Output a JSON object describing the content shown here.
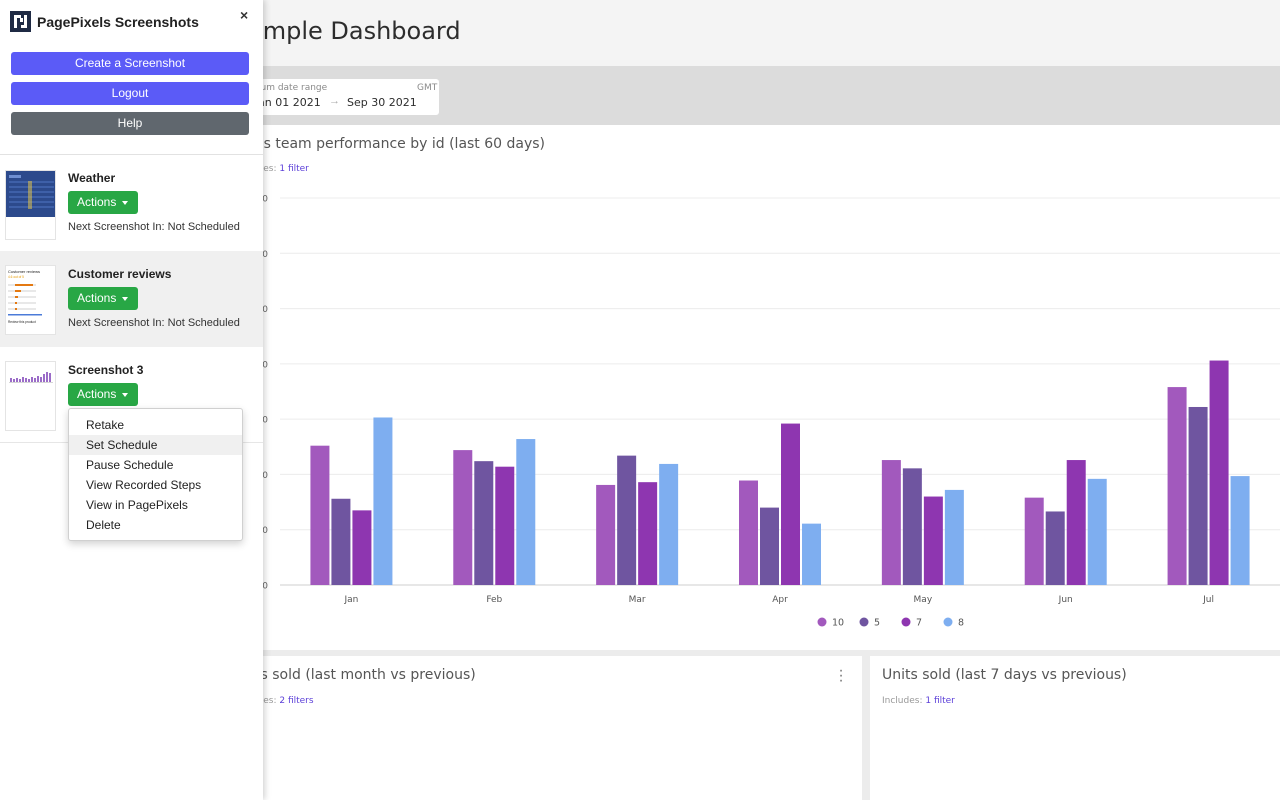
{
  "dashboard": {
    "title": "ample Dashboard",
    "date_range": {
      "label": "ium date range",
      "timezone": "GMT",
      "start": "an 01 2021",
      "end": "Sep 30 2021",
      "arrow": "→"
    },
    "main_card": {
      "title": "es team performance by id (last 60 days)",
      "includes_prefix": "ides:",
      "includes_link": "1 filter"
    },
    "bottom_left_card": {
      "title": "ts sold (last month vs previous)",
      "includes_prefix": "ides:",
      "includes_link": "2 filters"
    },
    "bottom_right_card": {
      "title": "Units sold (last 7 days vs previous)",
      "includes_prefix": "Includes:",
      "includes_link": "1 filter"
    },
    "kebab_icon": "vertical-ellipsis-icon"
  },
  "chart_data": {
    "type": "bar",
    "title": "es team performance by id (last 60 days)",
    "categories": [
      "Jan",
      "Feb",
      "Mar",
      "Apr",
      "May",
      "Jun",
      "Jul"
    ],
    "y_tick_labels": [
      "0",
      "0",
      "0",
      "0",
      "0",
      "0",
      "0",
      "0"
    ],
    "ylim": [
      0,
      7
    ],
    "grid": true,
    "legend_position": "bottom",
    "series": [
      {
        "name": "10",
        "color": "#a259bd",
        "values": [
          2.52,
          2.44,
          1.81,
          1.89,
          2.26,
          1.58,
          3.58
        ]
      },
      {
        "name": "5",
        "color": "#6f55a0",
        "values": [
          1.56,
          2.24,
          2.34,
          1.4,
          2.11,
          1.33,
          3.22
        ]
      },
      {
        "name": "7",
        "color": "#8e36b0",
        "values": [
          1.35,
          2.14,
          1.86,
          2.92,
          1.6,
          2.26,
          4.06
        ]
      },
      {
        "name": "8",
        "color": "#7eaef0",
        "values": [
          3.03,
          2.64,
          2.19,
          1.11,
          1.72,
          1.92,
          1.97
        ]
      }
    ]
  },
  "popup": {
    "title": "PagePixels Screenshots",
    "logo_icon": "pagepixels-logo-icon",
    "close_label": "×",
    "buttons": {
      "create": "Create a Screenshot",
      "logout": "Logout",
      "help": "Help"
    },
    "colors": {
      "primary": "#5b5bf7",
      "secondary": "#60676e",
      "actions": "#28a745"
    },
    "screenshots": [
      {
        "name": "Weather",
        "actions_label": "Actions",
        "next": "Next Screenshot In: Not Scheduled"
      },
      {
        "name": "Customer reviews",
        "actions_label": "Actions",
        "next": "Next Screenshot In: Not Scheduled"
      },
      {
        "name": "Screenshot 3",
        "actions_label": "Actions"
      }
    ],
    "thumb_text": {
      "reviews_title": "Customer reviews",
      "reviews_rating": "4.6 out of 5",
      "reviews_footer": "Review this product"
    },
    "menu": [
      "Retake",
      "Set Schedule",
      "Pause Schedule",
      "View Recorded Steps",
      "View in PagePixels",
      "Delete"
    ]
  }
}
